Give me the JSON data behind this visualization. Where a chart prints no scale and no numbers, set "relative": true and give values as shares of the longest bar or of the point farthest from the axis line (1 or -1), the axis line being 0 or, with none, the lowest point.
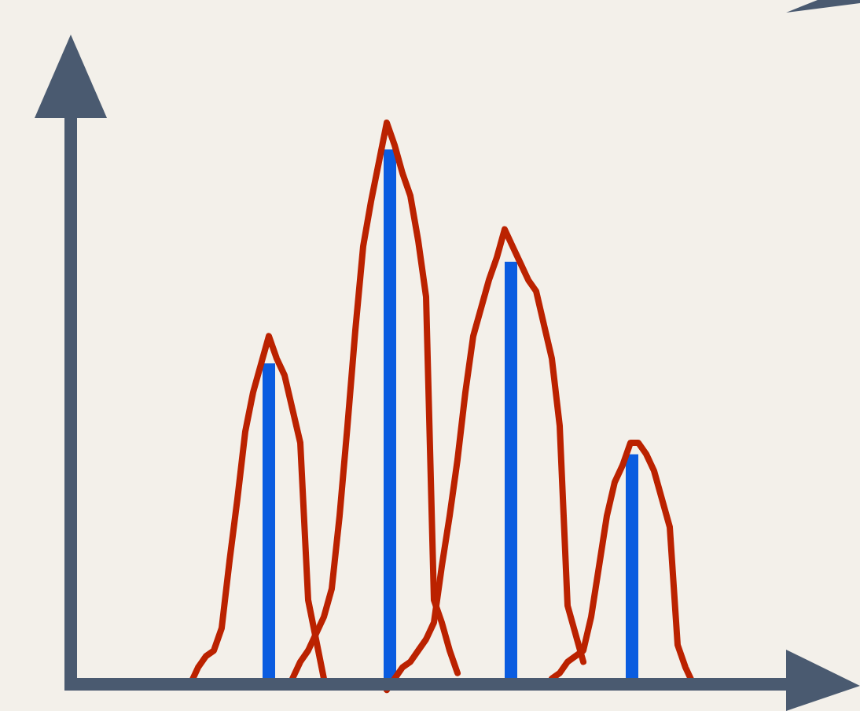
{
  "chart_data": [
    {
      "type": "bar",
      "relative": true,
      "categories": [
        null,
        null,
        null,
        null
      ],
      "series": [
        {
          "color": "#0a5ce0",
          "values": [
            0.6,
            1,
            0.79,
            0.43
          ]
        }
      ]
    },
    {
      "type": "line",
      "relative": true,
      "categories": [
        null,
        null,
        null,
        null,
        null,
        null,
        null,
        null,
        null,
        null,
        null,
        null,
        null,
        null,
        null,
        null,
        null,
        null,
        null,
        null,
        null,
        null,
        null,
        null,
        null,
        null,
        null,
        null,
        null,
        null,
        null,
        null,
        null,
        null,
        null,
        null,
        null,
        null,
        null,
        null,
        null,
        null,
        null,
        null,
        null,
        null,
        null,
        null,
        null,
        null,
        null,
        null,
        null,
        null,
        null,
        null,
        null,
        null,
        null,
        null,
        null,
        null,
        null,
        null,
        null
      ],
      "series": [
        {
          "color": "#bb2200",
          "values": [
            0,
            0.03,
            0.05,
            0.06,
            0.1,
            0.22,
            0.33,
            0.45,
            0.52,
            0.57,
            0.62,
            0.58,
            0.55,
            0.49,
            0.43,
            0.15,
            0.08,
            0.01,
            null,
            null,
            null,
            null,
            null,
            null,
            null,
            null,
            null,
            null,
            null,
            null,
            null,
            null,
            null,
            null,
            null,
            null,
            null,
            null,
            null,
            null,
            null,
            null,
            null,
            null,
            null,
            null,
            null,
            null,
            null,
            null,
            null,
            null,
            null,
            null,
            null,
            null,
            null,
            null,
            null,
            null,
            null,
            null,
            null,
            null,
            null
          ]
        },
        {
          "color": "#bb2200",
          "values": [
            null,
            null,
            null,
            null,
            null,
            null,
            null,
            null,
            null,
            null,
            null,
            null,
            null,
            0.01,
            0.04,
            0.06,
            0.09,
            0.12,
            0.17,
            0.3,
            0.46,
            0.63,
            0.78,
            0.86,
            0.93,
            1,
            0.96,
            0.91,
            0.87,
            0.79,
            0.69,
            0.15,
            0.11,
            0.06,
            0.02,
            null,
            null,
            null,
            null,
            null,
            null,
            null,
            null,
            null,
            null,
            null,
            null,
            null,
            null,
            null,
            null,
            null,
            null,
            null,
            null,
            null,
            null,
            null,
            null,
            null,
            null,
            null,
            null,
            null,
            null
          ]
        },
        {
          "color": "#bb2200",
          "values": [
            null,
            null,
            null,
            null,
            null,
            null,
            null,
            null,
            null,
            null,
            null,
            null,
            null,
            null,
            null,
            null,
            null,
            null,
            null,
            null,
            null,
            null,
            null,
            null,
            null,
            -0.01,
            0.01,
            0.03,
            0.04,
            0.06,
            0.08,
            0.11,
            0.21,
            0.3,
            0.4,
            0.52,
            0.62,
            0.67,
            0.72,
            0.76,
            0.81,
            0.78,
            0.75,
            0.72,
            0.7,
            0.64,
            0.58,
            0.46,
            0.14,
            0.09,
            0.04,
            null,
            null,
            null,
            null,
            null,
            null,
            null,
            null,
            null,
            null,
            null,
            null,
            null,
            null
          ]
        },
        {
          "color": "#bb2200",
          "values": [
            null,
            null,
            null,
            null,
            null,
            null,
            null,
            null,
            null,
            null,
            null,
            null,
            null,
            null,
            null,
            null,
            null,
            null,
            null,
            null,
            null,
            null,
            null,
            null,
            null,
            null,
            null,
            null,
            null,
            null,
            null,
            null,
            null,
            null,
            null,
            null,
            null,
            null,
            null,
            null,
            null,
            null,
            null,
            null,
            null,
            null,
            0.01,
            0.02,
            0.04,
            0.05,
            0.06,
            0.12,
            0.21,
            0.3,
            0.36,
            0.39,
            0.43,
            0.43,
            0.41,
            0.38,
            0.33,
            0.28,
            0.07,
            0.03,
            0
          ]
        }
      ]
    }
  ]
}
